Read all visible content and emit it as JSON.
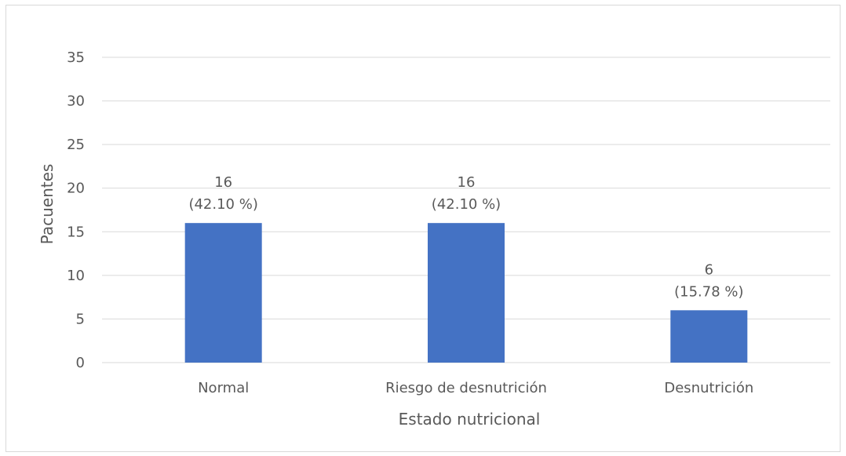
{
  "chart_data": {
    "type": "bar",
    "categories": [
      "Normal",
      "Riesgo de desnutrición",
      "Desnutrición"
    ],
    "values": [
      16,
      16,
      6
    ],
    "data_labels": [
      [
        "16",
        "(42.10 %)"
      ],
      [
        "16",
        "(42.10 %)"
      ],
      [
        "6",
        "(15.78 %)"
      ]
    ],
    "xlabel": "Estado nutricional",
    "ylabel": "Pacuentes",
    "ylim": [
      0,
      35
    ],
    "yticks": [
      0,
      5,
      10,
      15,
      20,
      25,
      30,
      35
    ],
    "grid": true,
    "bar_color": "#4472c4",
    "grid_color": "#d9d9d9",
    "text_color": "#595959"
  }
}
